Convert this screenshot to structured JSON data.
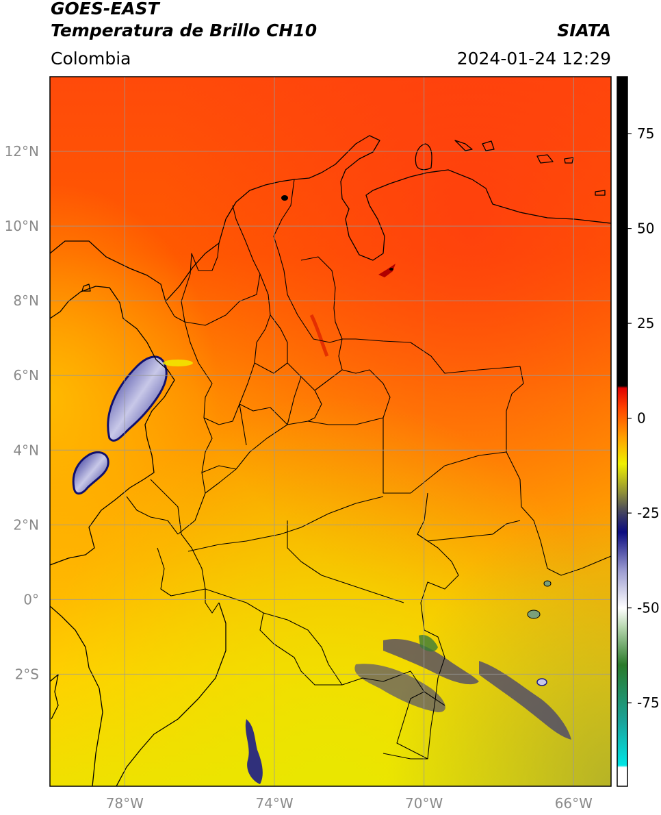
{
  "header": {
    "satellite": "GOES-EAST",
    "product": "Temperatura de Brillo CH10",
    "region": "Colombia",
    "agency": "SIATA",
    "datetime": "2024-01-24 12:29"
  },
  "map": {
    "extent": {
      "lon_min": -80,
      "lon_max": -65,
      "lat_min": -5,
      "lat_max": 14
    },
    "lat_ticks": [
      {
        "value": 12,
        "label": "12°N"
      },
      {
        "value": 10,
        "label": "10°N"
      },
      {
        "value": 8,
        "label": "8°N"
      },
      {
        "value": 6,
        "label": "6°N"
      },
      {
        "value": 4,
        "label": "4°N"
      },
      {
        "value": 2,
        "label": "2°N"
      },
      {
        "value": 0,
        "label": "0°"
      },
      {
        "value": -2,
        "label": "2°S"
      }
    ],
    "lon_ticks": [
      {
        "value": -78,
        "label": "78°W"
      },
      {
        "value": -74,
        "label": "74°W"
      },
      {
        "value": -70,
        "label": "70°W"
      },
      {
        "value": -66,
        "label": "66°W"
      }
    ],
    "gridlines": true
  },
  "colorbar": {
    "range": [
      -97,
      90
    ],
    "ticks": [
      {
        "value": 75,
        "label": "75"
      },
      {
        "value": 50,
        "label": "50"
      },
      {
        "value": 25,
        "label": "25"
      },
      {
        "value": 0,
        "label": "0"
      },
      {
        "value": -25,
        "label": "-25"
      },
      {
        "value": -50,
        "label": "-50"
      },
      {
        "value": -75,
        "label": "-75"
      }
    ],
    "stops": [
      {
        "value": -97,
        "color": "#ffffff"
      },
      {
        "value": -92,
        "color": "#ffffff"
      },
      {
        "value": -91.5,
        "color": "#00e5e5"
      },
      {
        "value": -80,
        "color": "#1aa39a"
      },
      {
        "value": -65,
        "color": "#2a7a2a"
      },
      {
        "value": -55,
        "color": "#b8d8b0"
      },
      {
        "value": -50,
        "color": "#ffffff"
      },
      {
        "value": -40,
        "color": "#9a9ad0"
      },
      {
        "value": -30,
        "color": "#0c0c80"
      },
      {
        "value": -25,
        "color": "#404060"
      },
      {
        "value": -20,
        "color": "#8a8a3a"
      },
      {
        "value": -12,
        "color": "#f0f000"
      },
      {
        "value": -5,
        "color": "#ffa000"
      },
      {
        "value": 3,
        "color": "#ff4000"
      },
      {
        "value": 8,
        "color": "#e00000"
      },
      {
        "value": 8.5,
        "color": "#000000"
      },
      {
        "value": 90,
        "color": "#000000"
      }
    ]
  }
}
